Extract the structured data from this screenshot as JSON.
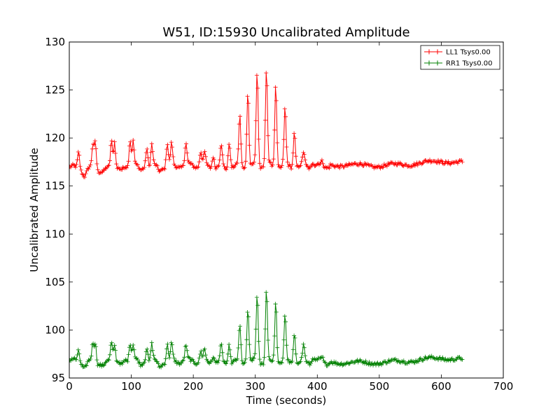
{
  "chart_data": {
    "type": "line",
    "title": "W51, ID:15930 Uncalibrated Amplitude",
    "xlabel": "Time (seconds)",
    "ylabel": "Uncalibrated Amplitude",
    "xlim": [
      0,
      700
    ],
    "ylim": [
      95,
      130
    ],
    "xticks": [
      "0",
      "100",
      "200",
      "300",
      "400",
      "500",
      "600",
      "700"
    ],
    "yticks": [
      "95",
      "100",
      "105",
      "110",
      "115",
      "120",
      "125",
      "130"
    ],
    "grid": false,
    "legend_position": "top-right",
    "marker": "+",
    "series": [
      {
        "name": "LL1 Tsys0.00",
        "color": "#ff0000",
        "baseline_points": [
          [
            0,
            116.9
          ],
          [
            50,
            116.7
          ],
          [
            100,
            117.1
          ],
          [
            150,
            117.0
          ],
          [
            200,
            117.2
          ],
          [
            250,
            116.9
          ],
          [
            300,
            117.1
          ],
          [
            350,
            117.0
          ],
          [
            400,
            117.1
          ],
          [
            450,
            117.2
          ],
          [
            500,
            117.1
          ],
          [
            550,
            117.3
          ],
          [
            600,
            117.6
          ],
          [
            635,
            117.4
          ]
        ],
        "peaks": [
          [
            15,
            118.6
          ],
          [
            38,
            119.2
          ],
          [
            42,
            119.6
          ],
          [
            68,
            119.8
          ],
          [
            73,
            119.8
          ],
          [
            98,
            120.0
          ],
          [
            103,
            119.8
          ],
          [
            125,
            119.2
          ],
          [
            133,
            119.3
          ],
          [
            158,
            119.5
          ],
          [
            165,
            119.3
          ],
          [
            188,
            119.3
          ],
          [
            212,
            118.5
          ],
          [
            218,
            118.4
          ],
          [
            232,
            118.3
          ],
          [
            245,
            119.2
          ],
          [
            258,
            119.8
          ],
          [
            275,
            122.3
          ],
          [
            288,
            125.0
          ],
          [
            303,
            127.0
          ],
          [
            318,
            127.3
          ],
          [
            333,
            125.7
          ],
          [
            348,
            123.0
          ],
          [
            363,
            120.8
          ],
          [
            378,
            118.4
          ],
          [
            393,
            117.6
          ],
          [
            408,
            117.5
          ]
        ],
        "troughs": [
          [
            25,
            116.1
          ],
          [
            55,
            116.4
          ],
          [
            85,
            116.5
          ],
          [
            115,
            116.5
          ],
          [
            145,
            116.6
          ]
        ]
      },
      {
        "name": "RR1 Tsys0.00",
        "color": "#008000",
        "baseline_points": [
          [
            0,
            96.8
          ],
          [
            50,
            96.6
          ],
          [
            100,
            96.9
          ],
          [
            150,
            96.7
          ],
          [
            200,
            96.8
          ],
          [
            250,
            96.6
          ],
          [
            300,
            96.7
          ],
          [
            350,
            96.6
          ],
          [
            400,
            96.7
          ],
          [
            450,
            96.6
          ],
          [
            500,
            96.6
          ],
          [
            550,
            96.8
          ],
          [
            600,
            97.1
          ],
          [
            635,
            96.9
          ]
        ],
        "peaks": [
          [
            15,
            97.9
          ],
          [
            38,
            98.5
          ],
          [
            42,
            98.7
          ],
          [
            68,
            98.8
          ],
          [
            73,
            98.7
          ],
          [
            98,
            98.9
          ],
          [
            103,
            98.7
          ],
          [
            125,
            98.4
          ],
          [
            133,
            98.5
          ],
          [
            158,
            98.5
          ],
          [
            165,
            98.4
          ],
          [
            188,
            98.3
          ],
          [
            212,
            97.7
          ],
          [
            218,
            97.8
          ],
          [
            232,
            97.5
          ],
          [
            245,
            98.2
          ],
          [
            258,
            98.7
          ],
          [
            275,
            100.4
          ],
          [
            288,
            102.3
          ],
          [
            303,
            103.8
          ],
          [
            318,
            104.2
          ],
          [
            333,
            103.1
          ],
          [
            348,
            101.5
          ],
          [
            363,
            99.8
          ],
          [
            378,
            98.3
          ],
          [
            393,
            97.3
          ],
          [
            408,
            97.1
          ]
        ],
        "troughs": [
          [
            25,
            96.1
          ],
          [
            55,
            96.2
          ],
          [
            85,
            96.2
          ],
          [
            115,
            96.2
          ],
          [
            145,
            96.2
          ]
        ]
      }
    ]
  }
}
